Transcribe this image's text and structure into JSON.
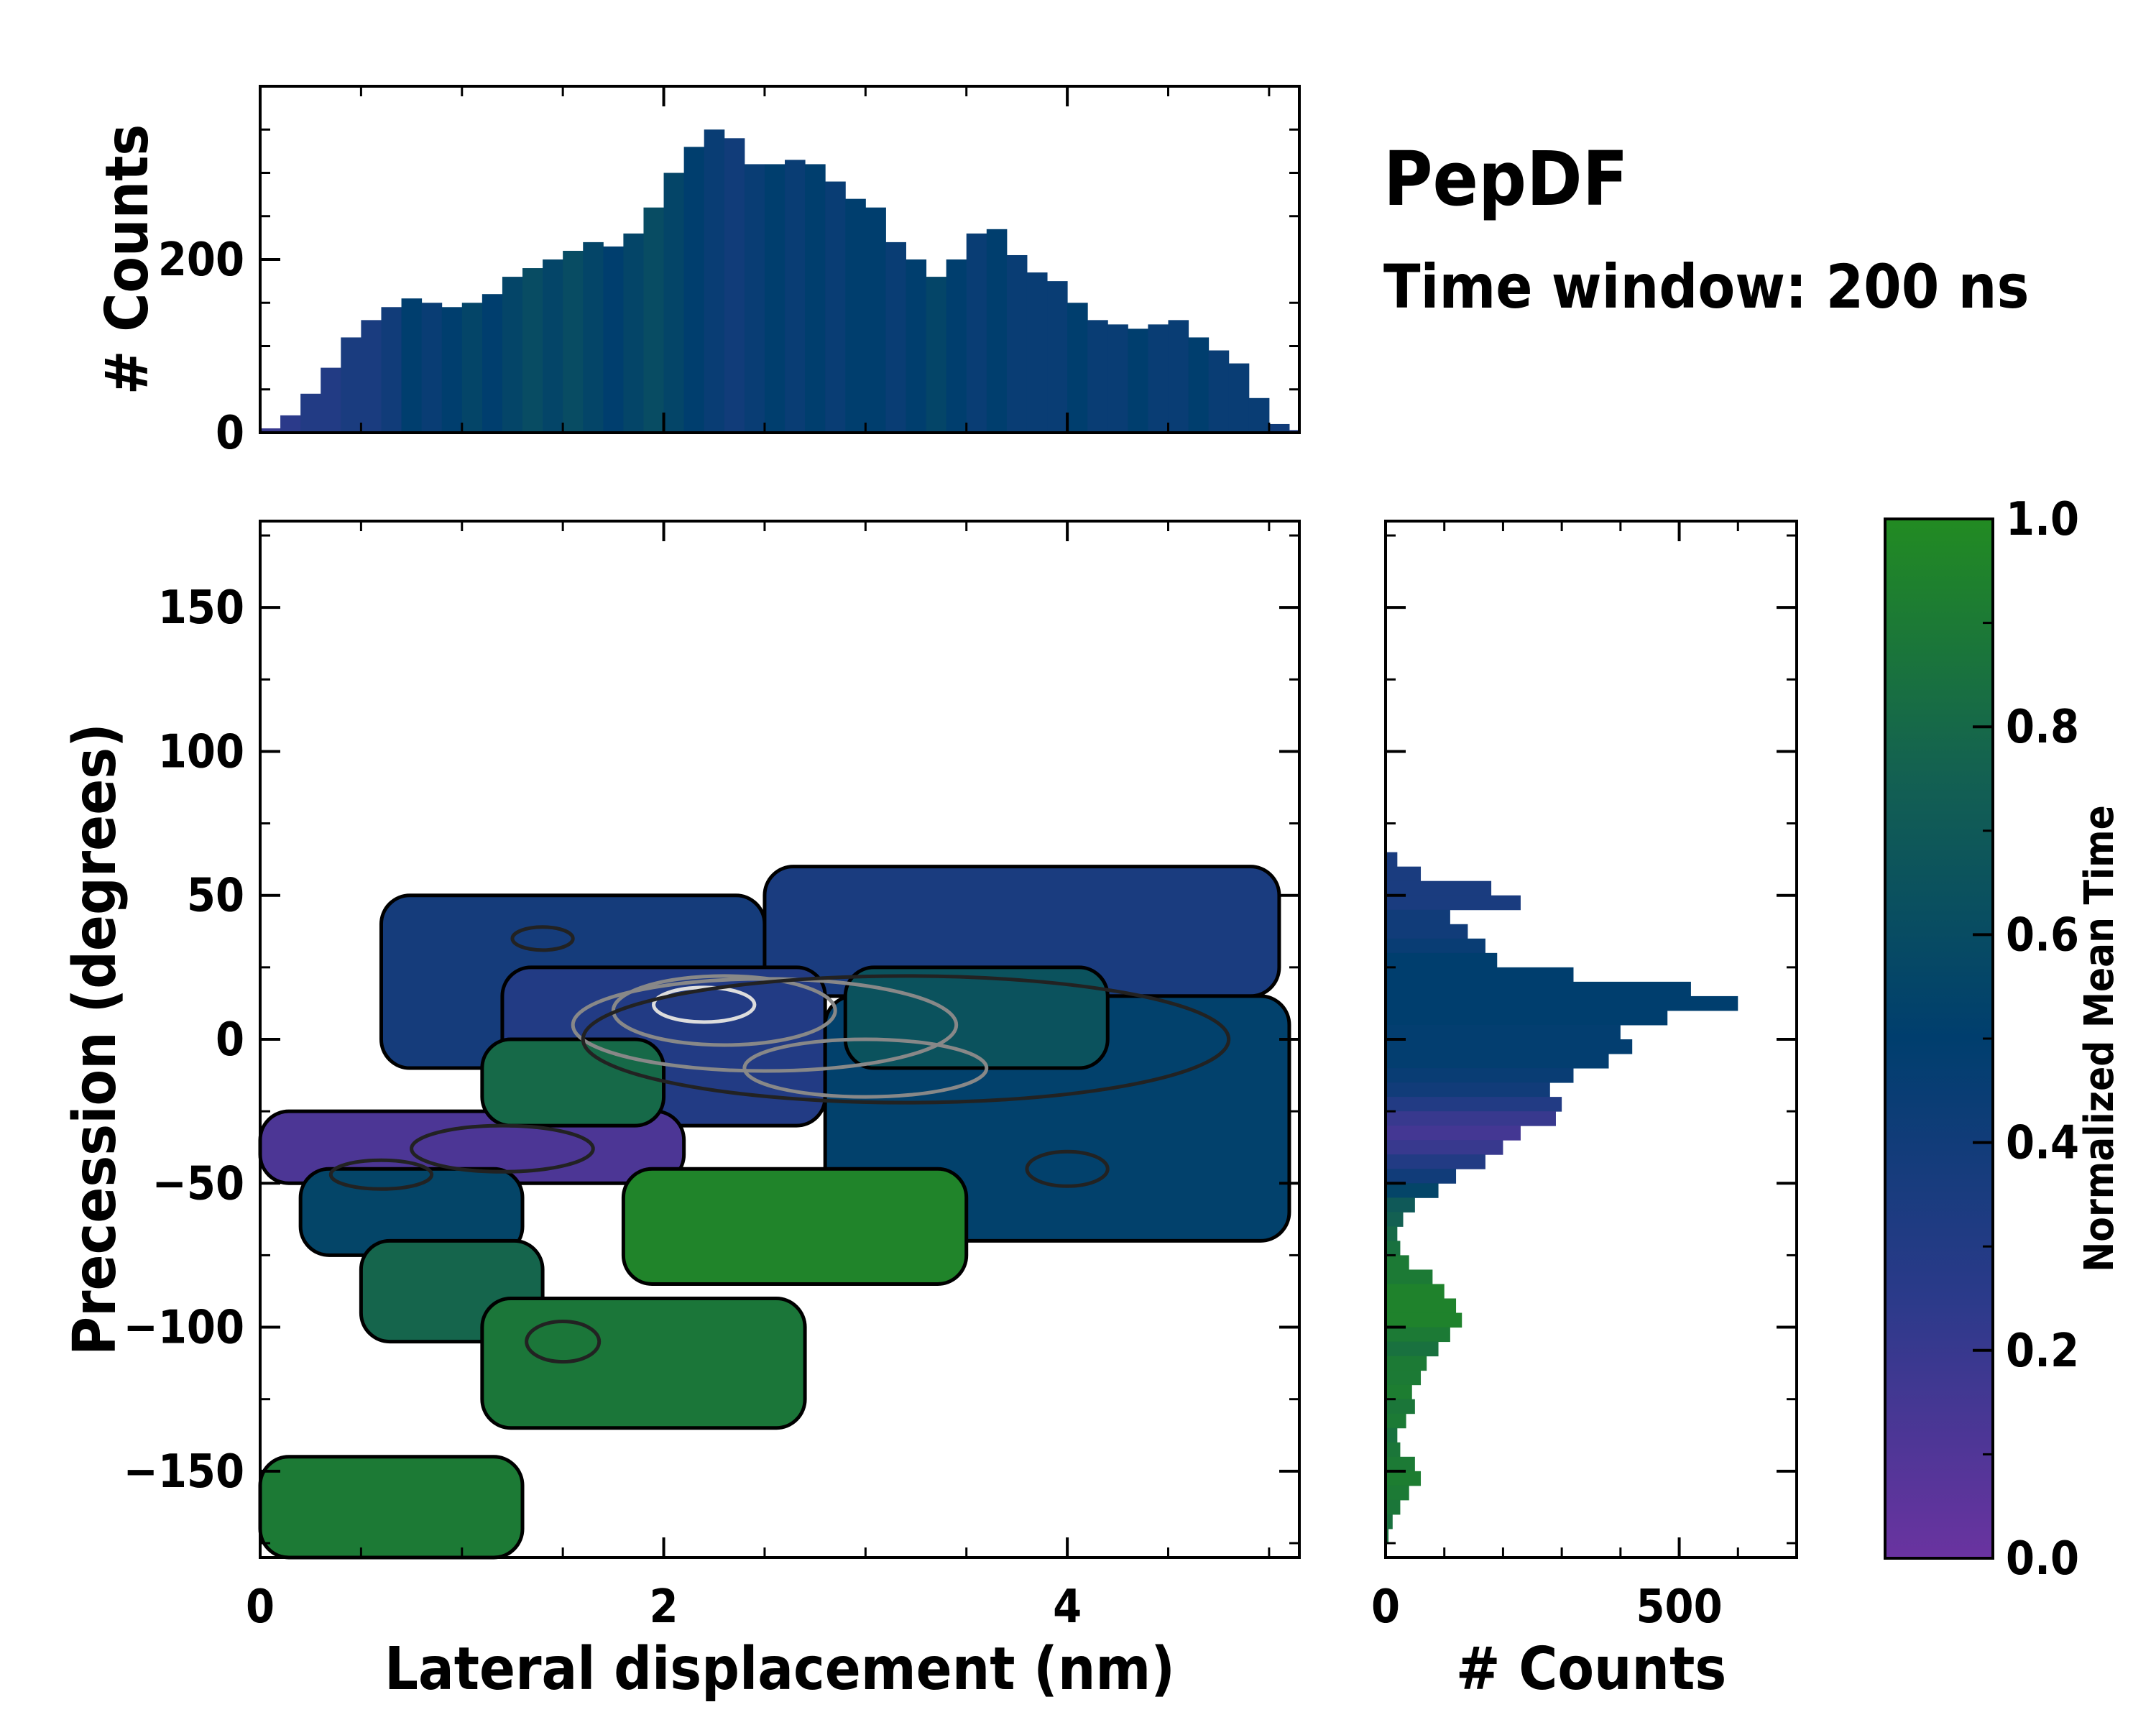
{
  "chart_data": {
    "type": "heatmap",
    "title": "PepDF",
    "subtitle": "Time window: 200 ns",
    "main": {
      "xlabel": "Lateral displacement (nm)",
      "ylabel": "Precession (degrees)",
      "xlim": [
        0,
        5.15
      ],
      "ylim": [
        -180,
        180
      ],
      "xticks": [
        0,
        2,
        4
      ],
      "xtick_labels": [
        "0",
        "2",
        "4"
      ],
      "yticks": [
        -150,
        -100,
        -50,
        0,
        50,
        100,
        150
      ],
      "ytick_labels": [
        "−150",
        "−100",
        "−50",
        "0",
        "50",
        "100",
        "150"
      ],
      "color_meaning": "Normalized Mean Time",
      "clusters": [
        {
          "x": [
            0.6,
            2.5
          ],
          "y": [
            -10,
            50
          ],
          "time": 0.38
        },
        {
          "x": [
            2.5,
            5.05
          ],
          "y": [
            15,
            60
          ],
          "time": 0.35
        },
        {
          "x": [
            1.2,
            2.8
          ],
          "y": [
            -30,
            25
          ],
          "time": 0.3
        },
        {
          "x": [
            2.8,
            5.1
          ],
          "y": [
            -70,
            15
          ],
          "time": 0.52
        },
        {
          "x": [
            0.0,
            2.1
          ],
          "y": [
            -50,
            -25
          ],
          "time": 0.12
        },
        {
          "x": [
            2.9,
            4.2
          ],
          "y": [
            -10,
            25
          ],
          "time": 0.65
        },
        {
          "x": [
            1.1,
            2.0
          ],
          "y": [
            -30,
            0
          ],
          "time": 0.8
        },
        {
          "x": [
            0.2,
            1.3
          ],
          "y": [
            -75,
            -45
          ],
          "time": 0.55
        },
        {
          "x": [
            0.5,
            1.4
          ],
          "y": [
            -105,
            -70
          ],
          "time": 0.78
        },
        {
          "x": [
            1.8,
            3.5
          ],
          "y": [
            -85,
            -45
          ],
          "time": 0.96
        },
        {
          "x": [
            1.1,
            2.7
          ],
          "y": [
            -135,
            -90
          ],
          "time": 0.88
        },
        {
          "x": [
            0.0,
            1.3
          ],
          "y": [
            -180,
            -145
          ],
          "time": 0.9
        }
      ],
      "density_contours": [
        {
          "x": 2.2,
          "y": 12,
          "rx": 0.25,
          "ry": 6,
          "level": "high"
        },
        {
          "x": 2.3,
          "y": 10,
          "rx": 0.55,
          "ry": 12,
          "level": "mid"
        },
        {
          "x": 2.5,
          "y": 5,
          "rx": 0.95,
          "ry": 16,
          "level": "mid"
        },
        {
          "x": 3.0,
          "y": -10,
          "rx": 0.6,
          "ry": 10,
          "level": "mid"
        },
        {
          "x": 3.2,
          "y": 0,
          "rx": 1.6,
          "ry": 22,
          "level": "low"
        },
        {
          "x": 1.2,
          "y": -38,
          "rx": 0.45,
          "ry": 8,
          "level": "low"
        },
        {
          "x": 0.6,
          "y": -47,
          "rx": 0.25,
          "ry": 5,
          "level": "low"
        },
        {
          "x": 4.0,
          "y": -45,
          "rx": 0.2,
          "ry": 6,
          "level": "low"
        },
        {
          "x": 1.5,
          "y": -105,
          "rx": 0.18,
          "ry": 7,
          "level": "low"
        },
        {
          "x": 1.4,
          "y": 35,
          "rx": 0.15,
          "ry": 4,
          "level": "low"
        }
      ]
    },
    "top_hist": {
      "ylabel": "# Counts",
      "ylim": [
        0,
        400
      ],
      "yticks": [
        0,
        200
      ],
      "ytick_labels": [
        "0",
        "200"
      ],
      "bin_x": [
        0.0,
        0.1,
        0.2,
        0.3,
        0.4,
        0.5,
        0.6,
        0.7,
        0.8,
        0.9,
        1.0,
        1.1,
        1.2,
        1.3,
        1.4,
        1.5,
        1.6,
        1.7,
        1.8,
        1.9,
        2.0,
        2.1,
        2.2,
        2.3,
        2.4,
        2.5,
        2.6,
        2.7,
        2.8,
        2.9,
        3.0,
        3.1,
        3.2,
        3.3,
        3.4,
        3.5,
        3.6,
        3.7,
        3.8,
        3.9,
        4.0,
        4.1,
        4.2,
        4.3,
        4.4,
        4.5,
        4.6,
        4.7,
        4.8,
        4.9,
        5.0,
        5.1
      ],
      "bin_counts": [
        5,
        20,
        45,
        75,
        110,
        130,
        145,
        155,
        150,
        145,
        150,
        160,
        180,
        190,
        200,
        210,
        220,
        215,
        230,
        260,
        300,
        330,
        350,
        340,
        310,
        310,
        315,
        310,
        290,
        270,
        260,
        220,
        200,
        180,
        200,
        230,
        235,
        205,
        185,
        175,
        150,
        130,
        125,
        120,
        125,
        130,
        110,
        95,
        80,
        40,
        10,
        3
      ],
      "time": [
        0.2,
        0.25,
        0.3,
        0.3,
        0.35,
        0.35,
        0.4,
        0.5,
        0.45,
        0.5,
        0.55,
        0.5,
        0.55,
        0.6,
        0.55,
        0.6,
        0.55,
        0.5,
        0.55,
        0.6,
        0.55,
        0.5,
        0.45,
        0.4,
        0.45,
        0.5,
        0.45,
        0.5,
        0.45,
        0.5,
        0.5,
        0.45,
        0.5,
        0.55,
        0.5,
        0.45,
        0.5,
        0.45,
        0.45,
        0.45,
        0.5,
        0.45,
        0.45,
        0.5,
        0.45,
        0.45,
        0.5,
        0.45,
        0.45,
        0.45,
        0.4,
        0.3
      ]
    },
    "right_hist": {
      "xlabel": "# Counts",
      "xlim": [
        0,
        700
      ],
      "xticks": [
        0,
        500
      ],
      "xtick_labels": [
        "0",
        "500"
      ],
      "bin_y": [
        60,
        55,
        50,
        45,
        40,
        35,
        30,
        25,
        20,
        15,
        10,
        5,
        0,
        -5,
        -10,
        -15,
        -20,
        -25,
        -30,
        -35,
        -40,
        -45,
        -50,
        -55,
        -60,
        -65,
        -70,
        -75,
        -80,
        -85,
        -90,
        -95,
        -100,
        -105,
        -110,
        -115,
        -120,
        -125,
        -130,
        -135,
        -140,
        -145,
        -150,
        -155,
        -160,
        -165,
        -170,
        -175
      ],
      "bin_counts": [
        20,
        60,
        180,
        230,
        110,
        140,
        170,
        190,
        320,
        520,
        600,
        480,
        400,
        420,
        380,
        320,
        280,
        300,
        290,
        230,
        200,
        170,
        120,
        90,
        50,
        30,
        20,
        25,
        40,
        80,
        100,
        120,
        130,
        110,
        90,
        70,
        60,
        45,
        50,
        35,
        20,
        25,
        50,
        60,
        40,
        25,
        12,
        5
      ],
      "time": [
        0.35,
        0.35,
        0.35,
        0.35,
        0.4,
        0.4,
        0.45,
        0.5,
        0.5,
        0.5,
        0.5,
        0.5,
        0.48,
        0.48,
        0.48,
        0.45,
        0.4,
        0.3,
        0.2,
        0.15,
        0.2,
        0.3,
        0.4,
        0.55,
        0.7,
        0.75,
        0.8,
        0.85,
        0.9,
        0.9,
        0.95,
        0.95,
        0.95,
        0.9,
        0.85,
        0.9,
        0.9,
        0.92,
        0.88,
        0.9,
        0.85,
        0.88,
        0.9,
        0.92,
        0.9,
        0.88,
        0.85,
        0.85
      ]
    },
    "colorbar": {
      "label": "Normalized Mean Time",
      "range": [
        0.0,
        1.0
      ],
      "ticks": [
        0.0,
        0.2,
        0.4,
        0.6,
        0.8,
        1.0
      ],
      "tick_labels": [
        "0.0",
        "0.2",
        "0.4",
        "0.6",
        "0.8",
        "1.0"
      ],
      "colors": [
        "#6a33a0",
        "#2b3a8a",
        "#003e6e",
        "#136052",
        "#228b22"
      ]
    }
  }
}
